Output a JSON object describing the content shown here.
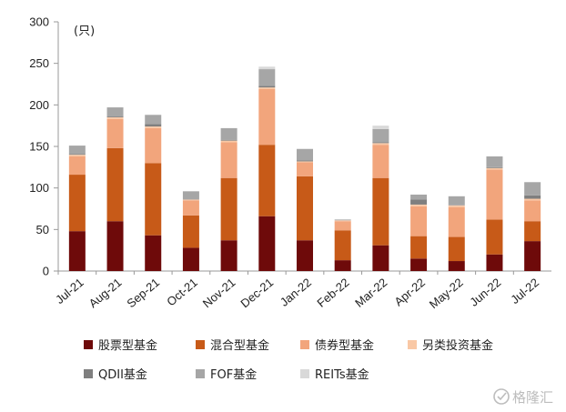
{
  "chart_data": {
    "type": "bar",
    "stacked": true,
    "unit_label": "(只)",
    "ylim": [
      0,
      300
    ],
    "yticks": [
      0,
      50,
      100,
      150,
      200,
      250,
      300
    ],
    "categories": [
      "Jul-21",
      "Aug-21",
      "Sep-21",
      "Oct-21",
      "Nov-21",
      "Dec-21",
      "Jan-22",
      "Feb-22",
      "Mar-22",
      "Apr-22",
      "May-22",
      "Jun-22",
      "Jul-22"
    ],
    "series": [
      {
        "name": "股票型基金",
        "color": "#6e0a0a",
        "values": [
          48,
          60,
          43,
          28,
          37,
          66,
          37,
          13,
          31,
          15,
          12,
          20,
          36
        ]
      },
      {
        "name": "混合型基金",
        "color": "#c75a18",
        "values": [
          68,
          88,
          87,
          39,
          75,
          86,
          77,
          36,
          81,
          27,
          29,
          42,
          24
        ]
      },
      {
        "name": "债券型基金",
        "color": "#f2a57c",
        "values": [
          22,
          35,
          42,
          18,
          43,
          67,
          17,
          11,
          40,
          36,
          36,
          60,
          25
        ]
      },
      {
        "name": "另类投资基金",
        "color": "#f9c8a5",
        "values": [
          2,
          2,
          2,
          1,
          2,
          2,
          1,
          1,
          2,
          2,
          2,
          2,
          2
        ]
      },
      {
        "name": "QDII基金",
        "color": "#7f7f7f",
        "values": [
          1,
          1,
          3,
          0,
          1,
          2,
          1,
          0,
          1,
          6,
          0,
          1,
          4
        ]
      },
      {
        "name": "FOF基金",
        "color": "#a6a6a6",
        "values": [
          10,
          11,
          11,
          10,
          14,
          20,
          14,
          1,
          16,
          6,
          11,
          13,
          16
        ]
      },
      {
        "name": "REITs基金",
        "color": "#d9d9d9",
        "values": [
          0,
          0,
          0,
          0,
          0,
          3,
          0,
          0,
          4,
          0,
          0,
          0,
          0
        ]
      }
    ]
  },
  "watermark": {
    "text": "格隆汇",
    "icon": "glh-logo-icon"
  }
}
